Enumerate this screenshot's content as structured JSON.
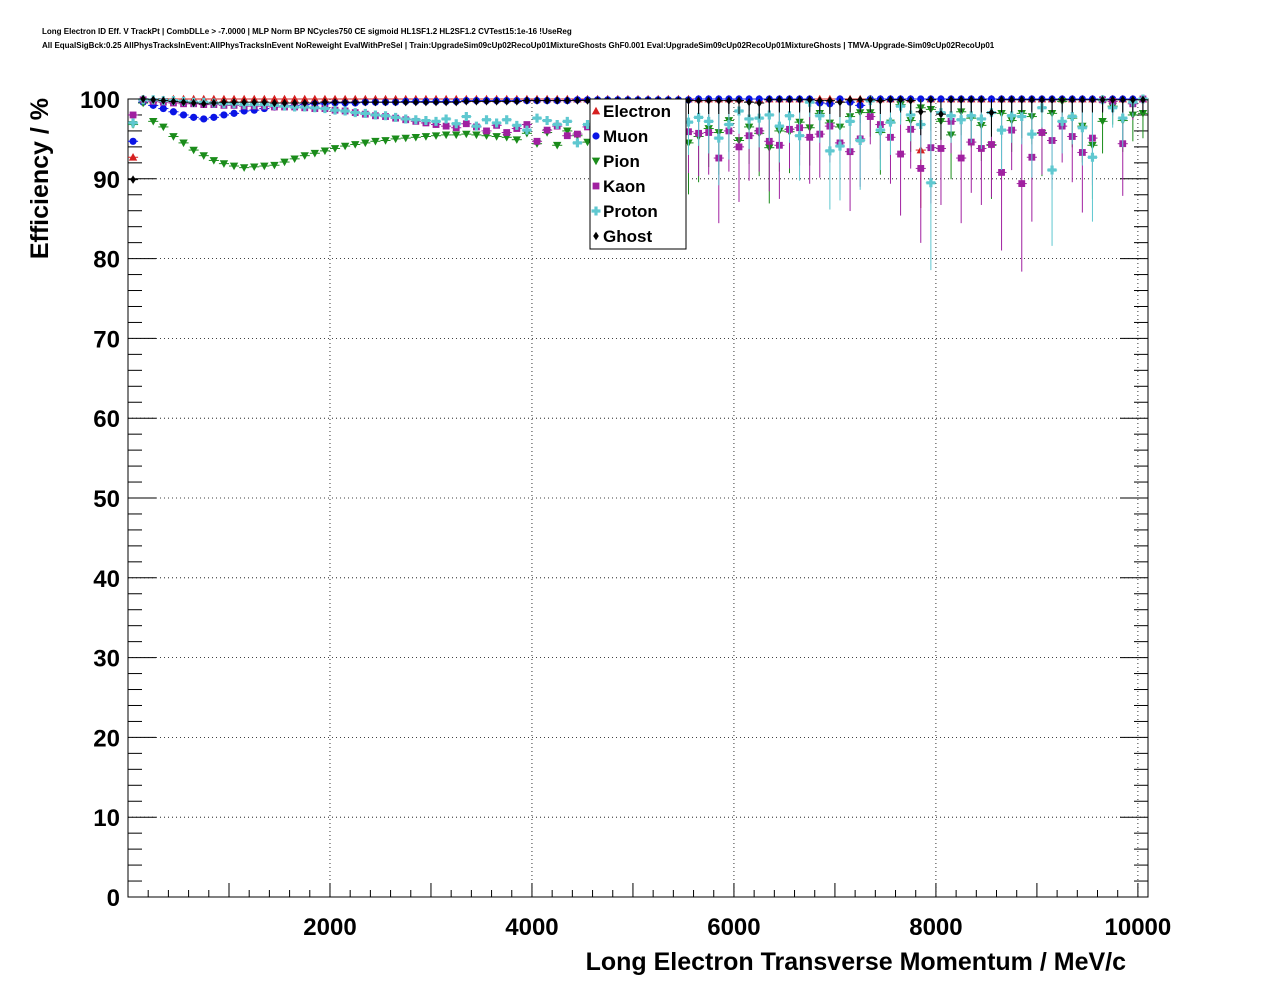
{
  "title": {
    "line1": "Long Electron ID Eff. V TrackPt | CombDLLe > -7.0000 | MLP Norm BP NCycles750 CE sigmoid HL1SF1.2 HL2SF1.2 CVTest15:1e-16 !UseReg",
    "line2": "All EqualSigBck:0.25 AllPhysTracksInEvent:AllPhysTracksInEvent NoReweight EvalWithPreSel | Train:UpgradeSim09cUp02RecoUp01MixtureGhosts GhF0.001 Eval:UpgradeSim09cUp02RecoUp01MixtureGhosts | TMVA-Upgrade-Sim09cUp02RecoUp01"
  },
  "colors": {
    "Electron": "#d62020",
    "Muon": "#0a14e6",
    "Pion": "#1a8c1a",
    "Kaon": "#a020a0",
    "Proton": "#5fc8d0",
    "Ghost": "#000000"
  },
  "chart_data": {
    "type": "scatter",
    "xlabel": "Long Electron Transverse Momentum / MeV/c",
    "ylabel": "Efficiency / %",
    "xlim": [
      0,
      10100
    ],
    "ylim": [
      0,
      100
    ],
    "x_ticks": [
      2000,
      4000,
      6000,
      8000,
      10000
    ],
    "y_ticks": [
      0,
      10,
      20,
      30,
      40,
      50,
      60,
      70,
      80,
      90,
      100
    ],
    "x_tick_labels": [
      "2000",
      "4000",
      "6000",
      "8000",
      "10000"
    ],
    "y_tick_labels": [
      "0",
      "10",
      "20",
      "30",
      "40",
      "50",
      "60",
      "70",
      "80",
      "90",
      "100"
    ],
    "grid": true,
    "legend_position": "top-center",
    "bin_width": 100,
    "x": [
      50,
      150,
      250,
      350,
      450,
      550,
      650,
      750,
      850,
      950,
      1050,
      1150,
      1250,
      1350,
      1450,
      1550,
      1650,
      1750,
      1850,
      1950,
      2050,
      2150,
      2250,
      2350,
      2450,
      2550,
      2650,
      2750,
      2850,
      2950,
      3050,
      3150,
      3250,
      3350,
      3450,
      3550,
      3650,
      3750,
      3850,
      3950,
      4050,
      4150,
      4250,
      4350,
      4450,
      4550,
      4650,
      4750,
      4850,
      4950,
      5050,
      5150,
      5250,
      5350,
      5450,
      5550,
      5650,
      5750,
      5850,
      5950,
      6050,
      6150,
      6250,
      6350,
      6450,
      6550,
      6650,
      6750,
      6850,
      6950,
      7050,
      7150,
      7250,
      7350,
      7450,
      7550,
      7650,
      7750,
      7850,
      7950,
      8050,
      8150,
      8250,
      8350,
      8450,
      8550,
      8650,
      8750,
      8850,
      8950,
      9050,
      9150,
      9250,
      9350,
      9450,
      9550,
      9650,
      9750,
      9850,
      9950,
      10050
    ],
    "series": [
      {
        "name": "Electron",
        "marker": "triangle-up",
        "values": [
          92.7,
          99.9,
          99.9,
          99.9,
          100,
          100,
          100,
          100,
          100,
          100,
          100,
          100,
          100,
          100,
          100,
          100,
          100,
          100,
          100,
          100,
          100,
          100,
          100,
          100,
          100,
          100,
          100,
          100,
          100,
          100,
          100,
          100,
          100,
          100,
          100,
          100,
          100,
          100,
          100,
          100,
          100,
          100,
          100,
          100,
          100,
          100,
          100,
          100,
          100,
          100,
          100,
          100,
          100,
          100,
          100,
          100,
          100,
          100,
          100,
          100,
          100,
          100,
          100,
          100,
          100,
          100,
          100,
          100,
          100,
          100,
          100,
          100,
          100,
          100,
          100,
          100,
          100,
          100,
          93.6,
          100,
          100,
          100,
          100,
          100,
          100,
          100,
          100,
          100,
          100,
          100,
          100,
          100,
          100,
          100,
          100,
          100,
          100,
          100,
          100,
          100,
          100
        ]
      },
      {
        "name": "Muon",
        "marker": "circle",
        "values": [
          94.7,
          99.6,
          99.2,
          98.8,
          98.4,
          98.0,
          97.7,
          97.5,
          97.7,
          98.0,
          98.2,
          98.5,
          98.6,
          98.8,
          99.0,
          99.1,
          99.2,
          99.3,
          99.4,
          99.4,
          99.5,
          99.5,
          99.5,
          99.6,
          99.6,
          99.6,
          99.6,
          99.7,
          99.7,
          99.7,
          99.7,
          99.7,
          99.7,
          99.8,
          99.8,
          99.8,
          99.8,
          99.8,
          99.8,
          99.8,
          99.8,
          99.8,
          99.8,
          99.8,
          99.9,
          99.9,
          99.9,
          99.9,
          99.9,
          99.9,
          99.9,
          99.9,
          99.9,
          99.9,
          99.9,
          99.9,
          100,
          100,
          100,
          100,
          100,
          100,
          100,
          100,
          100,
          100,
          100,
          100,
          99.5,
          99.4,
          100,
          99.6,
          99.2,
          100,
          100,
          100,
          100,
          100,
          100,
          100,
          100,
          100,
          100,
          100,
          100,
          100,
          100,
          100,
          100,
          100,
          100,
          100,
          100,
          100,
          100,
          100,
          100,
          100,
          100,
          100,
          100
        ]
      },
      {
        "name": "Pion",
        "marker": "triangle-down",
        "values": [
          96.8,
          99.5,
          97.2,
          96.5,
          95.3,
          94.5,
          93.6,
          92.9,
          92.3,
          91.9,
          91.6,
          91.4,
          91.5,
          91.6,
          91.7,
          92.1,
          92.5,
          92.9,
          93.2,
          93.5,
          93.8,
          94.1,
          94.3,
          94.5,
          94.7,
          94.8,
          95.0,
          95.1,
          95.2,
          95.3,
          95.4,
          95.5,
          95.5,
          95.6,
          95.5,
          95.4,
          95.3,
          95.2,
          94.9,
          95.7,
          94.4,
          95.8,
          94.2,
          96.0,
          95.4,
          94.6,
          96.1,
          95.0,
          94.9,
          96.2,
          95.3,
          95.8,
          96.6,
          95.0,
          95.6,
          94.5,
          95.3,
          96.3,
          95.8,
          97.3,
          94.8,
          96.5,
          95.7,
          93.9,
          96.0,
          95.9,
          97.1,
          96.4,
          98.2,
          97.0,
          96.5,
          97.8,
          98.3,
          98.3,
          95.8,
          97.0,
          99.3,
          97.3,
          98.9,
          98.7,
          97.2,
          95.5,
          98.4,
          97.6,
          96.7,
          94.2,
          98.2,
          97.3,
          98.2,
          97.8,
          95.7,
          98.2,
          99.7,
          97.6,
          96.6,
          94.2,
          97.2,
          99.1,
          97.3,
          98.0,
          98.2
        ]
      },
      {
        "name": "Kaon",
        "marker": "square",
        "values": [
          98.0,
          99.9,
          99.7,
          99.6,
          99.5,
          99.4,
          99.4,
          99.3,
          99.3,
          99.2,
          99.2,
          99.1,
          99.1,
          99.1,
          99.0,
          99.0,
          99.0,
          98.9,
          98.8,
          98.8,
          98.6,
          98.5,
          98.3,
          98.1,
          97.9,
          97.8,
          97.6,
          97.4,
          97.2,
          97.0,
          96.8,
          96.6,
          96.4,
          96.9,
          96.5,
          96.0,
          96.7,
          95.8,
          96.3,
          96.8,
          94.7,
          96.1,
          96.6,
          95.4,
          95.6,
          96.5,
          97.9,
          95.5,
          94.8,
          97.9,
          95.2,
          95.2,
          95.4,
          95.9,
          97.2,
          95.9,
          95.7,
          95.8,
          92.6,
          96.0,
          94.0,
          95.4,
          96.0,
          94.7,
          94.2,
          96.2,
          96.4,
          95.2,
          95.6,
          96.6,
          94.5,
          93.4,
          95.0,
          97.8,
          96.8,
          95.2,
          93.1,
          96.2,
          91.3,
          93.9,
          93.8,
          97.2,
          92.6,
          94.6,
          93.8,
          94.3,
          90.8,
          96.1,
          89.4,
          92.7,
          95.8,
          94.8,
          96.6,
          95.3,
          93.3,
          95.1,
          99.9,
          99.7,
          94.4,
          99.4,
          100
        ]
      },
      {
        "name": "Proton",
        "marker": "cross",
        "values": [
          97.0,
          99.9,
          99.9,
          99.8,
          99.8,
          99.7,
          99.6,
          99.6,
          99.5,
          99.4,
          99.4,
          99.3,
          99.3,
          99.3,
          99.2,
          99.1,
          99.0,
          99.0,
          98.9,
          98.8,
          98.6,
          98.5,
          98.3,
          98.2,
          98.0,
          97.9,
          97.7,
          97.5,
          97.4,
          97.3,
          97.2,
          97.5,
          96.9,
          97.8,
          96.6,
          97.4,
          97.0,
          97.4,
          96.7,
          96.1,
          97.6,
          97.3,
          96.8,
          97.2,
          94.5,
          96.8,
          95.3,
          96.5,
          96.6,
          95.0,
          95.6,
          96.6,
          97.9,
          95.2,
          95.8,
          97.1,
          97.7,
          97.2,
          95.1,
          96.8,
          98.5,
          97.5,
          97.6,
          98.0,
          96.6,
          97.9,
          95.4,
          99.6,
          97.9,
          93.5,
          94.1,
          97.2,
          94.8,
          99.8,
          96.1,
          97.1,
          99.1,
          98.0,
          96.8,
          89.5,
          98.3,
          97.9,
          97.4,
          97.9,
          97.5,
          98.3,
          96.1,
          97.9,
          97.8,
          95.6,
          98.9,
          91.1,
          97.2,
          97.8,
          96.4,
          92.7,
          99.9,
          98.9,
          97.6,
          99.6,
          100
        ]
      },
      {
        "name": "Ghost",
        "marker": "diamond",
        "values": [
          89.9,
          100,
          99.9,
          99.8,
          99.7,
          99.6,
          99.5,
          99.4,
          99.5,
          99.6,
          99.6,
          99.6,
          99.6,
          99.6,
          99.5,
          99.5,
          99.5,
          99.5,
          99.5,
          99.6,
          99.6,
          99.6,
          99.6,
          99.6,
          99.6,
          99.6,
          99.6,
          99.6,
          99.6,
          99.6,
          99.6,
          99.6,
          99.6,
          99.7,
          99.7,
          99.7,
          99.7,
          99.7,
          99.7,
          99.8,
          99.8,
          99.8,
          99.8,
          99.8,
          99.8,
          99.8,
          99.8,
          99.8,
          99.8,
          99.8,
          99.8,
          99.8,
          99.8,
          99.8,
          99.8,
          99.8,
          99.8,
          99.8,
          99.8,
          99.8,
          99.8,
          99.6,
          99.5,
          99.9,
          99.9,
          99.9,
          99.9,
          99.9,
          99.8,
          99.8,
          99.6,
          99.9,
          99.9,
          99.9,
          99.8,
          99.9,
          99.9,
          99.8,
          98.4,
          99.9,
          98.1,
          99.9,
          99.9,
          99.9,
          99.9,
          98.3,
          99.9,
          99.9,
          99.9,
          99.9,
          99.9,
          99.9,
          99.9,
          99.9,
          99.9,
          99.9,
          99.9,
          99.9,
          99.9,
          99.9,
          99.9
        ]
      }
    ]
  }
}
